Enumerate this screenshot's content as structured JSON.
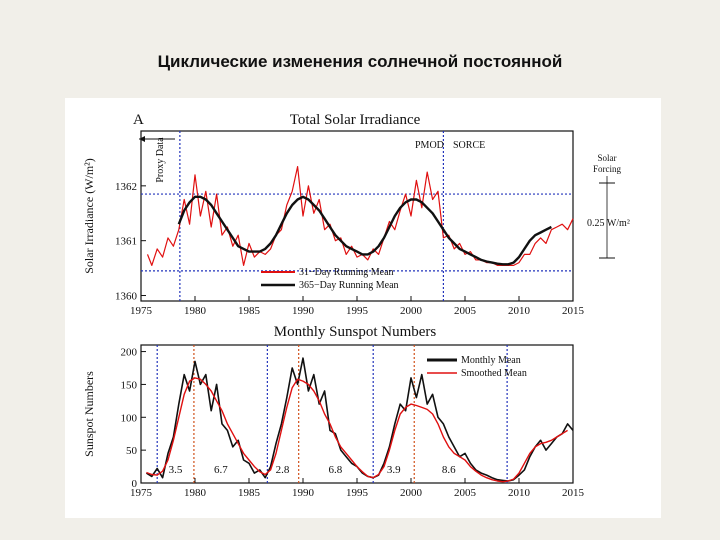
{
  "slide": {
    "title": "Циклические изменения солнечной постоянной"
  },
  "chart_data": [
    {
      "type": "line",
      "panel_letter": "A",
      "title": "Total Solar Irradiance",
      "ylabel": "Solar Irradiance (W/m²)",
      "xlabel": "",
      "xlim": [
        1975,
        2015
      ],
      "ylim": [
        1359.9,
        1363.0
      ],
      "x_ticks": [
        1975,
        1980,
        1985,
        1990,
        1995,
        2000,
        2005,
        2010,
        2015
      ],
      "y_ticks": [
        1360,
        1361,
        1362
      ],
      "grid": false,
      "legend_position": "bottom-center",
      "annotations": {
        "proxy": "Proxy Data",
        "pmod": "PMOD",
        "sorce": "SORCE",
        "forcing": "Solar Forcing",
        "amplitude": "0.25 W/m²"
      },
      "reference_lines": {
        "x_dotted": [
          1978.6,
          2003.0
        ],
        "y_dotted": [
          1361.85,
          1360.45
        ]
      },
      "series": [
        {
          "name": "31−Day Running Mean",
          "color": "#e01010",
          "x": [
            1975.6,
            1976.0,
            1976.5,
            1977.0,
            1977.5,
            1978.0,
            1978.5,
            1979.0,
            1979.5,
            1980.0,
            1980.5,
            1981.0,
            1981.5,
            1982.0,
            1982.5,
            1983.0,
            1983.5,
            1984.0,
            1984.5,
            1985.0,
            1985.5,
            1986.0,
            1986.5,
            1987.0,
            1987.5,
            1988.0,
            1988.5,
            1989.0,
            1989.5,
            1990.0,
            1990.5,
            1991.0,
            1991.5,
            1992.0,
            1992.5,
            1993.0,
            1993.5,
            1994.0,
            1994.5,
            1995.0,
            1995.5,
            1996.0,
            1996.5,
            1997.0,
            1997.5,
            1998.0,
            1998.5,
            1999.0,
            1999.5,
            2000.0,
            2000.5,
            2001.0,
            2001.5,
            2002.0,
            2002.5,
            2003.0,
            2003.5,
            2004.0,
            2004.5,
            2005.0,
            2005.5,
            2006.0,
            2006.5,
            2007.0,
            2007.5,
            2008.0,
            2008.5,
            2009.0,
            2009.5,
            2010.0,
            2010.5,
            2011.0,
            2011.5,
            2012.0,
            2012.5,
            2013.0,
            2013.5,
            2014.0,
            2014.5,
            2015.0
          ],
          "y": [
            1360.75,
            1360.55,
            1360.85,
            1360.7,
            1361.05,
            1360.9,
            1361.2,
            1361.75,
            1361.3,
            1362.2,
            1361.45,
            1361.9,
            1361.25,
            1361.85,
            1361.1,
            1361.25,
            1360.9,
            1361.1,
            1360.55,
            1360.95,
            1360.7,
            1360.8,
            1360.75,
            1360.85,
            1361.1,
            1361.2,
            1361.65,
            1361.9,
            1362.35,
            1361.45,
            1362.0,
            1361.5,
            1361.75,
            1361.2,
            1361.3,
            1361.0,
            1361.05,
            1360.75,
            1360.9,
            1360.7,
            1360.75,
            1360.65,
            1360.85,
            1360.75,
            1361.05,
            1361.35,
            1361.2,
            1361.55,
            1361.85,
            1361.45,
            1362.1,
            1361.6,
            1362.25,
            1361.75,
            1361.9,
            1361.05,
            1361.1,
            1360.85,
            1360.95,
            1360.75,
            1360.8,
            1360.65,
            1360.65,
            1360.6,
            1360.6,
            1360.55,
            1360.55,
            1360.55,
            1360.55,
            1360.6,
            1360.75,
            1360.75,
            1360.95,
            1361.05,
            1360.95,
            1361.2,
            1361.25,
            1361.3,
            1361.2,
            1361.4
          ]
        },
        {
          "name": "365−Day Running Mean",
          "color": "#111111",
          "x": [
            1978.5,
            1979.0,
            1979.5,
            1980.0,
            1980.5,
            1981.0,
            1981.5,
            1982.0,
            1982.5,
            1983.0,
            1983.5,
            1984.0,
            1984.5,
            1985.0,
            1985.5,
            1986.0,
            1986.5,
            1987.0,
            1987.5,
            1988.0,
            1988.5,
            1989.0,
            1989.5,
            1990.0,
            1990.5,
            1991.0,
            1991.5,
            1992.0,
            1992.5,
            1993.0,
            1993.5,
            1994.0,
            1994.5,
            1995.0,
            1995.5,
            1996.0,
            1996.5,
            1997.0,
            1997.5,
            1998.0,
            1998.5,
            1999.0,
            1999.5,
            2000.0,
            2000.5,
            2001.0,
            2001.5,
            2002.0,
            2002.5,
            2003.0,
            2003.5,
            2004.0,
            2004.5,
            2005.0,
            2005.5,
            2006.0,
            2006.5,
            2007.0,
            2007.5,
            2008.0,
            2008.5,
            2009.0,
            2009.5,
            2010.0,
            2010.5,
            2011.0,
            2011.5,
            2012.0,
            2012.5,
            2013.0
          ],
          "y": [
            1361.3,
            1361.55,
            1361.7,
            1361.8,
            1361.8,
            1361.75,
            1361.65,
            1361.5,
            1361.35,
            1361.2,
            1361.05,
            1360.9,
            1360.85,
            1360.8,
            1360.8,
            1360.8,
            1360.85,
            1360.95,
            1361.1,
            1361.3,
            1361.5,
            1361.65,
            1361.75,
            1361.8,
            1361.75,
            1361.65,
            1361.55,
            1361.4,
            1361.25,
            1361.1,
            1361.0,
            1360.9,
            1360.85,
            1360.8,
            1360.75,
            1360.75,
            1360.8,
            1360.9,
            1361.05,
            1361.25,
            1361.45,
            1361.6,
            1361.7,
            1361.75,
            1361.75,
            1361.7,
            1361.6,
            1361.5,
            1361.35,
            1361.2,
            1361.05,
            1360.95,
            1360.85,
            1360.8,
            1360.75,
            1360.7,
            1360.65,
            1360.62,
            1360.6,
            1360.58,
            1360.57,
            1360.57,
            1360.6,
            1360.7,
            1360.85,
            1361.0,
            1361.1,
            1361.15,
            1361.2,
            1361.25
          ]
        }
      ]
    },
    {
      "type": "line",
      "title": "Monthly Sunspot Numbers",
      "ylabel": "Sunspot Numbers",
      "xlabel": "",
      "xlim": [
        1975,
        2015
      ],
      "ylim": [
        0,
        210
      ],
      "x_ticks": [
        1975,
        1980,
        1985,
        1990,
        1995,
        2000,
        2005,
        2010,
        2015
      ],
      "y_ticks": [
        0,
        50,
        100,
        150,
        200
      ],
      "grid": false,
      "legend_position": "top-right",
      "minima_lines": [
        1976.5,
        1986.7,
        1996.5,
        2008.9
      ],
      "maxima_lines": [
        1979.9,
        1989.6,
        2000.3
      ],
      "phase_labels": [
        {
          "x": 1978.2,
          "text": "3.5"
        },
        {
          "x": 1982.4,
          "text": "6.7"
        },
        {
          "x": 1988.1,
          "text": "2.8"
        },
        {
          "x": 1993.0,
          "text": "6.8"
        },
        {
          "x": 1998.4,
          "text": "3.9"
        },
        {
          "x": 2003.5,
          "text": "8.6"
        }
      ],
      "series": [
        {
          "name": "Monthly Mean",
          "color": "#111111",
          "x": [
            1975.5,
            1976.0,
            1976.5,
            1977.0,
            1977.5,
            1978.0,
            1978.5,
            1979.0,
            1979.5,
            1980.0,
            1980.5,
            1981.0,
            1981.5,
            1982.0,
            1982.5,
            1983.0,
            1983.5,
            1984.0,
            1984.5,
            1985.0,
            1985.5,
            1986.0,
            1986.5,
            1987.0,
            1987.5,
            1988.0,
            1988.5,
            1989.0,
            1989.5,
            1990.0,
            1990.5,
            1991.0,
            1991.5,
            1992.0,
            1992.5,
            1993.0,
            1993.5,
            1994.0,
            1994.5,
            1995.0,
            1995.5,
            1996.0,
            1996.5,
            1997.0,
            1997.5,
            1998.0,
            1998.5,
            1999.0,
            1999.5,
            2000.0,
            2000.5,
            2001.0,
            2001.5,
            2002.0,
            2002.5,
            2003.0,
            2003.5,
            2004.0,
            2004.5,
            2005.0,
            2005.5,
            2006.0,
            2006.5,
            2007.0,
            2007.5,
            2008.0,
            2008.5,
            2009.0,
            2009.5,
            2010.0,
            2010.5,
            2011.0,
            2011.5,
            2012.0,
            2012.5,
            2013.0,
            2013.5,
            2014.0,
            2014.5,
            2015.0
          ],
          "y": [
            15,
            10,
            22,
            8,
            45,
            70,
            120,
            165,
            140,
            185,
            150,
            165,
            110,
            150,
            90,
            80,
            55,
            65,
            35,
            30,
            15,
            20,
            8,
            25,
            60,
            90,
            130,
            175,
            150,
            190,
            140,
            165,
            120,
            140,
            80,
            75,
            50,
            40,
            30,
            25,
            15,
            10,
            8,
            12,
            30,
            55,
            90,
            120,
            110,
            160,
            130,
            165,
            120,
            135,
            100,
            90,
            70,
            55,
            40,
            45,
            30,
            20,
            15,
            12,
            8,
            5,
            4,
            3,
            5,
            12,
            20,
            40,
            55,
            65,
            50,
            60,
            70,
            75,
            90,
            80
          ]
        },
        {
          "name": "Smoothed Mean",
          "color": "#e01010",
          "x": [
            1975.5,
            1976.0,
            1976.5,
            1977.0,
            1977.5,
            1978.0,
            1978.5,
            1979.0,
            1979.5,
            1980.0,
            1980.5,
            1981.0,
            1981.5,
            1982.0,
            1982.5,
            1983.0,
            1983.5,
            1984.0,
            1984.5,
            1985.0,
            1985.5,
            1986.0,
            1986.5,
            1987.0,
            1987.5,
            1988.0,
            1988.5,
            1989.0,
            1989.5,
            1990.0,
            1990.5,
            1991.0,
            1991.5,
            1992.0,
            1992.5,
            1993.0,
            1993.5,
            1994.0,
            1994.5,
            1995.0,
            1995.5,
            1996.0,
            1996.5,
            1997.0,
            1997.5,
            1998.0,
            1998.5,
            1999.0,
            1999.5,
            2000.0,
            2000.5,
            2001.0,
            2001.5,
            2002.0,
            2002.5,
            2003.0,
            2003.5,
            2004.0,
            2004.5,
            2005.0,
            2005.5,
            2006.0,
            2006.5,
            2007.0,
            2007.5,
            2008.0,
            2008.5,
            2009.0,
            2009.5,
            2010.0,
            2010.5,
            2011.0,
            2011.5,
            2012.0,
            2012.5,
            2013.0,
            2013.5,
            2014.0,
            2014.5
          ],
          "y": [
            16,
            13,
            12,
            18,
            35,
            65,
            100,
            135,
            155,
            160,
            158,
            150,
            140,
            125,
            110,
            90,
            75,
            60,
            45,
            35,
            25,
            17,
            13,
            20,
            45,
            80,
            115,
            145,
            158,
            155,
            150,
            140,
            125,
            105,
            90,
            70,
            55,
            45,
            35,
            25,
            17,
            10,
            8,
            13,
            25,
            50,
            80,
            105,
            115,
            120,
            118,
            115,
            112,
            105,
            90,
            70,
            55,
            45,
            40,
            35,
            25,
            18,
            12,
            8,
            5,
            3,
            2,
            3,
            6,
            15,
            30,
            45,
            55,
            60,
            62,
            65,
            70,
            75,
            80
          ]
        }
      ]
    }
  ]
}
